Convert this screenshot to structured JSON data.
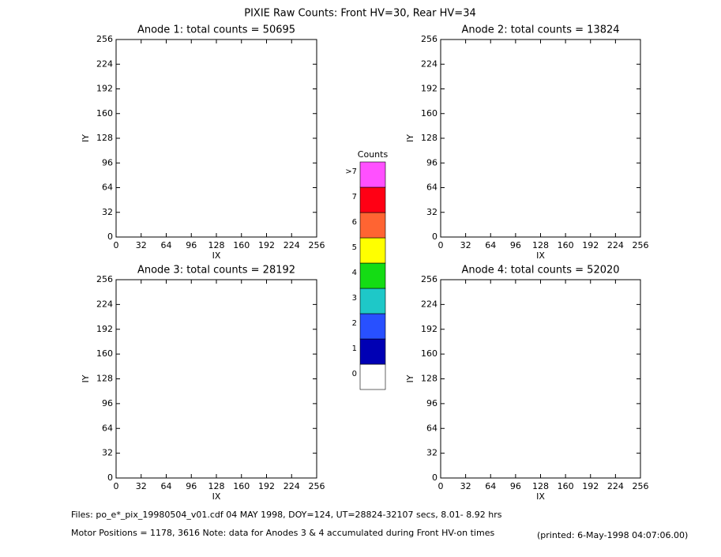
{
  "title": "PIXIE Raw Counts:  Front HV=30, Rear HV=34",
  "chart_data": [
    {
      "type": "heatmap",
      "title": "Anode 1: total counts = 50695",
      "xlabel": "IX",
      "ylabel": "IY",
      "xlim": [
        0,
        256
      ],
      "ylim": [
        0,
        256
      ],
      "xticks": [
        0,
        32,
        64,
        96,
        128,
        160,
        192,
        224,
        256
      ],
      "yticks": [
        0,
        32,
        64,
        96,
        128,
        160,
        192,
        224,
        256
      ]
    },
    {
      "type": "heatmap",
      "title": "Anode 2: total counts = 13824",
      "xlabel": "IX",
      "ylabel": "IY",
      "xlim": [
        0,
        256
      ],
      "ylim": [
        0,
        256
      ],
      "xticks": [
        0,
        32,
        64,
        96,
        128,
        160,
        192,
        224,
        256
      ],
      "yticks": [
        0,
        32,
        64,
        96,
        128,
        160,
        192,
        224,
        256
      ]
    },
    {
      "type": "heatmap",
      "title": "Anode 3: total counts = 28192",
      "xlabel": "IX",
      "ylabel": "IY",
      "xlim": [
        0,
        256
      ],
      "ylim": [
        0,
        256
      ],
      "xticks": [
        0,
        32,
        64,
        96,
        128,
        160,
        192,
        224,
        256
      ],
      "yticks": [
        0,
        32,
        64,
        96,
        128,
        160,
        192,
        224,
        256
      ]
    },
    {
      "type": "heatmap",
      "title": "Anode 4: total counts = 52020",
      "xlabel": "IX",
      "ylabel": "IY",
      "xlim": [
        0,
        256
      ],
      "ylim": [
        0,
        256
      ],
      "xticks": [
        0,
        32,
        64,
        96,
        128,
        160,
        192,
        224,
        256
      ],
      "yticks": [
        0,
        32,
        64,
        96,
        128,
        160,
        192,
        224,
        256
      ]
    }
  ],
  "colorbar": {
    "title": "Counts",
    "labels": [
      "0",
      "1",
      "2",
      "3",
      "4",
      "5",
      "6",
      "7",
      ">7"
    ],
    "colors": [
      "#ffffff",
      "#0000b4",
      "#2850ff",
      "#1ec8c8",
      "#14dc14",
      "#ffff00",
      "#ff6432",
      "#ff0014",
      "#ff50ff"
    ]
  },
  "footer": {
    "files": "Files: po_e*_pix_19980504_v01.cdf    04 MAY 1998, DOY=124, UT=28824-32107 secs,  8.01- 8.92 hrs",
    "motor": "Motor Positions = 1178, 3616   Note: data for Anodes 3 & 4 accumulated during Front HV-on times",
    "printed": "(printed:  6-May-1998 04:07:06.00)"
  }
}
